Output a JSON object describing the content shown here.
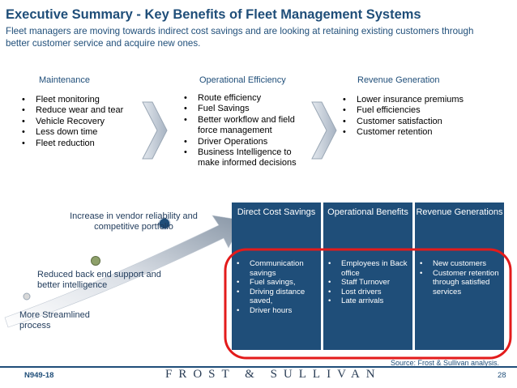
{
  "title": "Executive Summary - Key Benefits of Fleet Management Systems",
  "subtitle": "Fleet managers are moving towards indirect cost savings and are looking at retaining existing customers through better customer service and acquire new ones.",
  "columns": [
    {
      "heading": "Maintenance",
      "bullets": [
        "Fleet monitoring",
        "Reduce wear and tear",
        "Vehicle Recovery",
        "Less down time",
        "Fleet reduction"
      ]
    },
    {
      "heading": "Operational Efficiency",
      "bullets": [
        "Route efficiency",
        "Fuel Savings",
        "Better workflow and field force management",
        "Driver Operations",
        "Business Intelligence to make informed decisions"
      ]
    },
    {
      "heading": "Revenue Generation",
      "bullets": [
        "Lower insurance premiums",
        "Fuel efficiencies",
        "Customer satisfaction",
        "Customer retention"
      ]
    }
  ],
  "staircase": {
    "step1": "More Streamlined process",
    "step2": "Reduced back end support and better intelligence",
    "step3": "Increase in vendor reliability and competitive portfolio"
  },
  "table": {
    "headers": [
      "Direct Cost Savings",
      "Operational Benefits",
      "Revenue Generations"
    ],
    "cells": [
      [
        "Communication savings",
        "Fuel savings,",
        "Driving distance saved,",
        "Driver hours"
      ],
      [
        "Employees in Back office",
        "Staff Turnover",
        "Lost drivers",
        "Late arrivals"
      ],
      [
        "New customers",
        "Customer retention through satisfied services"
      ]
    ]
  },
  "colors": {
    "navy": "#1f4e79",
    "highlight_ring": "#e31b1b",
    "arrow": "#9aa7b5",
    "marker": "#8ea06a"
  },
  "source": "Source: Frost & Sullivan analysis.",
  "footer": {
    "code": "N949-18",
    "brand": "FROST & SULLIVAN",
    "page": "28"
  }
}
